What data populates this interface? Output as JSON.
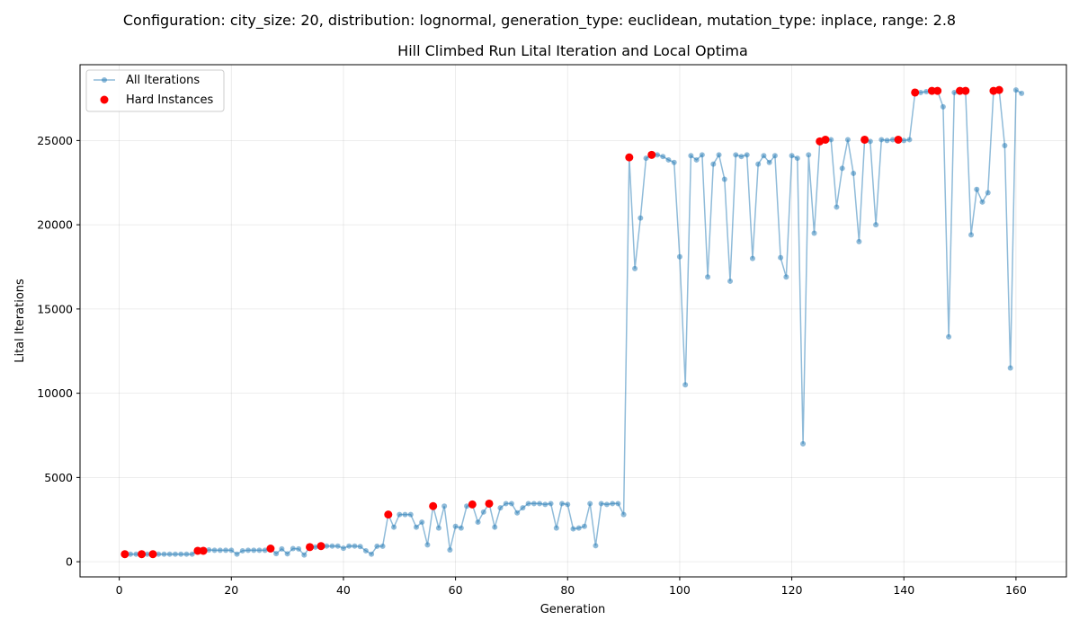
{
  "suptitle": "Configuration: city_size: 20, distribution: lognormal, generation_type: euclidean, mutation_type: inplace, range: 2.8",
  "chart_data": {
    "type": "scatter",
    "title": "Hill Climbed Run Lital Iteration and Local Optima",
    "xlabel": "Generation",
    "ylabel": "Lital Iterations",
    "xlim": [
      -7,
      169
    ],
    "ylim": [
      -900,
      29500
    ],
    "xticks": [
      0,
      20,
      40,
      60,
      80,
      100,
      120,
      140,
      160
    ],
    "yticks": [
      0,
      5000,
      10000,
      15000,
      20000,
      25000
    ],
    "grid": true,
    "legend_position": "upper-left",
    "series": [
      {
        "name": "All Iterations",
        "kind": "line",
        "color": "#1f77b4",
        "x": [
          1,
          2,
          3,
          4,
          5,
          6,
          7,
          8,
          9,
          10,
          11,
          12,
          13,
          14,
          15,
          16,
          17,
          18,
          19,
          20,
          21,
          22,
          23,
          24,
          25,
          26,
          27,
          28,
          29,
          30,
          31,
          32,
          33,
          34,
          35,
          36,
          37,
          38,
          39,
          40,
          41,
          42,
          43,
          44,
          45,
          46,
          47,
          48,
          49,
          50,
          51,
          52,
          53,
          54,
          55,
          56,
          57,
          58,
          59,
          60,
          61,
          62,
          63,
          64,
          65,
          66,
          67,
          68,
          69,
          70,
          71,
          72,
          73,
          74,
          75,
          76,
          77,
          78,
          79,
          80,
          81,
          82,
          83,
          84,
          85,
          86,
          87,
          88,
          89,
          90,
          91,
          92,
          93,
          94,
          95,
          96,
          97,
          98,
          99,
          100,
          101,
          102,
          103,
          104,
          105,
          106,
          107,
          108,
          109,
          110,
          111,
          112,
          113,
          114,
          115,
          116,
          117,
          118,
          119,
          120,
          121,
          122,
          123,
          124,
          125,
          126,
          127,
          128,
          129,
          130,
          131,
          132,
          133,
          134,
          135,
          136,
          137,
          138,
          139,
          140,
          141,
          142,
          143,
          144,
          145,
          146,
          147,
          148,
          149,
          150,
          151,
          152,
          153,
          154,
          155,
          156,
          157,
          158,
          159,
          160,
          161
        ],
        "y": [
          450,
          450,
          450,
          450,
          450,
          450,
          450,
          450,
          450,
          450,
          450,
          450,
          450,
          650,
          650,
          700,
          680,
          680,
          680,
          680,
          450,
          650,
          680,
          680,
          680,
          680,
          780,
          480,
          760,
          470,
          780,
          760,
          400,
          870,
          870,
          930,
          930,
          930,
          930,
          800,
          930,
          930,
          900,
          650,
          450,
          920,
          920,
          2800,
          2050,
          2800,
          2800,
          2800,
          2050,
          2350,
          1000,
          3300,
          2000,
          3300,
          700,
          2100,
          2000,
          3300,
          3400,
          2350,
          2950,
          3450,
          2050,
          3200,
          3450,
          3450,
          2900,
          3200,
          3450,
          3450,
          3450,
          3400,
          3450,
          2000,
          3450,
          3400,
          1950,
          2000,
          2100,
          3450,
          950,
          3450,
          3400,
          3450,
          3450,
          2800,
          24000,
          17400,
          20400,
          23950,
          24150,
          24150,
          24050,
          23850,
          23700,
          18100,
          10500,
          24100,
          23850,
          24150,
          16900,
          23600,
          24150,
          22700,
          16650,
          24150,
          24050,
          24150,
          18000,
          23600,
          24100,
          23700,
          24100,
          18050,
          16900,
          24100,
          23950,
          7000,
          24150,
          19500,
          24950,
          25050,
          25050,
          21050,
          23350,
          25050,
          23050,
          19000,
          25050,
          24950,
          20000,
          25050,
          25000,
          25050,
          25050,
          25000,
          25050,
          27850,
          27850,
          27900,
          27950,
          27950,
          27000,
          13350,
          27850,
          27900,
          27950,
          19400,
          22100,
          21350,
          21900,
          27950,
          28000,
          24700,
          11500,
          28000,
          27800
        ]
      },
      {
        "name": "Hard Instances",
        "kind": "points",
        "color": "#ff0000",
        "x": [
          1,
          4,
          6,
          14,
          15,
          27,
          34,
          36,
          48,
          56,
          63,
          66,
          91,
          95,
          125,
          126,
          133,
          139,
          142,
          145,
          146,
          150,
          151,
          156,
          157
        ],
        "y": [
          450,
          450,
          450,
          650,
          650,
          780,
          870,
          930,
          2800,
          3300,
          3400,
          3450,
          24000,
          24150,
          24950,
          25050,
          25050,
          25050,
          27850,
          27950,
          27950,
          27950,
          27950,
          27950,
          28000
        ]
      }
    ]
  }
}
